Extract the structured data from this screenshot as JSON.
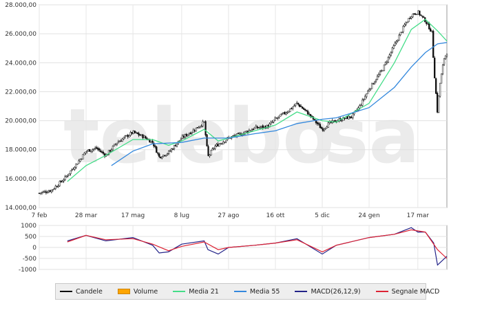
{
  "chart_data": [
    {
      "type": "candlestick",
      "title": "",
      "ylim": [
        14000,
        28000
      ],
      "y_ticks": [
        "28.000,00",
        "26.000,00",
        "24.000,00",
        "22.000,00",
        "20.000,00",
        "18.000,00",
        "16.000,00",
        "14.000,00"
      ],
      "y_tick_values": [
        28000,
        26000,
        24000,
        22000,
        20000,
        18000,
        16000,
        14000
      ],
      "x_ticks": [
        "7 feb",
        "28 mar",
        "17 mag",
        "8 lug",
        "27 ago",
        "16 ott",
        "5 dic",
        "24 gen",
        "17 mar"
      ],
      "x_tick_dates": [
        "2024-02-07",
        "2024-03-28",
        "2024-05-17",
        "2024-07-08",
        "2024-08-27",
        "2024-10-16",
        "2024-12-05",
        "2025-01-24",
        "2025-03-17"
      ],
      "x_range": [
        "2024-02-07",
        "2025-04-17"
      ],
      "grid": true,
      "price_series": {
        "name": "Candele",
        "color": "#000000",
        "points": [
          [
            "2024-02-07",
            15000
          ],
          [
            "2024-02-20",
            15200
          ],
          [
            "2024-03-05",
            16000
          ],
          [
            "2024-03-20",
            17200
          ],
          [
            "2024-03-28",
            17900
          ],
          [
            "2024-04-08",
            18100
          ],
          [
            "2024-04-18",
            17600
          ],
          [
            "2024-04-30",
            18500
          ],
          [
            "2024-05-17",
            19200
          ],
          [
            "2024-05-28",
            18900
          ],
          [
            "2024-06-07",
            18500
          ],
          [
            "2024-06-14",
            17500
          ],
          [
            "2024-06-24",
            17800
          ],
          [
            "2024-07-08",
            18800
          ],
          [
            "2024-07-22",
            19400
          ],
          [
            "2024-08-01",
            19900
          ],
          [
            "2024-08-05",
            17500
          ],
          [
            "2024-08-12",
            18200
          ],
          [
            "2024-08-27",
            18800
          ],
          [
            "2024-09-10",
            19100
          ],
          [
            "2024-09-24",
            19500
          ],
          [
            "2024-10-08",
            19600
          ],
          [
            "2024-10-16",
            20100
          ],
          [
            "2024-10-30",
            20700
          ],
          [
            "2024-11-08",
            21200
          ],
          [
            "2024-11-20",
            20500
          ],
          [
            "2024-12-05",
            19400
          ],
          [
            "2024-12-12",
            19800
          ],
          [
            "2024-12-20",
            20000
          ],
          [
            "2025-01-06",
            20300
          ],
          [
            "2025-01-14",
            21000
          ],
          [
            "2025-01-24",
            22200
          ],
          [
            "2025-02-07",
            23500
          ],
          [
            "2025-02-20",
            25200
          ],
          [
            "2025-03-03",
            26600
          ],
          [
            "2025-03-10",
            27300
          ],
          [
            "2025-03-17",
            27500
          ],
          [
            "2025-03-25",
            26900
          ],
          [
            "2025-04-01",
            26100
          ],
          [
            "2025-04-03",
            23800
          ],
          [
            "2025-04-07",
            20500
          ],
          [
            "2025-04-09",
            22300
          ],
          [
            "2025-04-14",
            24300
          ],
          [
            "2025-04-17",
            24700
          ]
        ]
      },
      "ma21": {
        "name": "Media 21",
        "color": "#44dd88",
        "points": [
          [
            "2024-03-08",
            15800
          ],
          [
            "2024-03-28",
            16900
          ],
          [
            "2024-04-18",
            17600
          ],
          [
            "2024-05-17",
            18700
          ],
          [
            "2024-06-07",
            18700
          ],
          [
            "2024-06-24",
            18300
          ],
          [
            "2024-07-08",
            18600
          ],
          [
            "2024-08-01",
            19400
          ],
          [
            "2024-08-16",
            18600
          ],
          [
            "2024-08-27",
            18800
          ],
          [
            "2024-09-24",
            19300
          ],
          [
            "2024-10-16",
            19700
          ],
          [
            "2024-11-08",
            20600
          ],
          [
            "2024-12-05",
            20000
          ],
          [
            "2024-12-20",
            19900
          ],
          [
            "2025-01-24",
            21200
          ],
          [
            "2025-02-20",
            24000
          ],
          [
            "2025-03-10",
            26300
          ],
          [
            "2025-03-25",
            27000
          ],
          [
            "2025-04-07",
            26200
          ],
          [
            "2025-04-17",
            25500
          ]
        ]
      },
      "ma55": {
        "name": "Media 55",
        "color": "#3388dd",
        "points": [
          [
            "2024-04-24",
            16900
          ],
          [
            "2024-05-17",
            17900
          ],
          [
            "2024-06-07",
            18400
          ],
          [
            "2024-07-08",
            18500
          ],
          [
            "2024-08-01",
            18800
          ],
          [
            "2024-08-27",
            18800
          ],
          [
            "2024-09-24",
            19100
          ],
          [
            "2024-10-16",
            19300
          ],
          [
            "2024-11-08",
            19800
          ],
          [
            "2024-12-05",
            20100
          ],
          [
            "2024-12-20",
            20200
          ],
          [
            "2025-01-24",
            20900
          ],
          [
            "2025-02-20",
            22300
          ],
          [
            "2025-03-10",
            23700
          ],
          [
            "2025-03-25",
            24700
          ],
          [
            "2025-04-07",
            25300
          ],
          [
            "2025-04-17",
            25400
          ]
        ]
      }
    },
    {
      "type": "line",
      "title": "",
      "ylim": [
        -1000,
        1000
      ],
      "y_ticks": [
        "1000",
        "500",
        "0",
        "-500",
        "-1000"
      ],
      "y_tick_values": [
        1000,
        500,
        0,
        -500,
        -1000
      ],
      "series": [
        {
          "name": "MACD(26,12,9)",
          "color": "#222288",
          "points": [
            [
              "2024-03-08",
              300
            ],
            [
              "2024-03-28",
              550
            ],
            [
              "2024-04-18",
              300
            ],
            [
              "2024-05-17",
              450
            ],
            [
              "2024-06-07",
              100
            ],
            [
              "2024-06-14",
              -250
            ],
            [
              "2024-06-24",
              -200
            ],
            [
              "2024-07-08",
              150
            ],
            [
              "2024-08-01",
              300
            ],
            [
              "2024-08-05",
              -100
            ],
            [
              "2024-08-16",
              -300
            ],
            [
              "2024-08-27",
              0
            ],
            [
              "2024-09-24",
              100
            ],
            [
              "2024-10-16",
              200
            ],
            [
              "2024-11-08",
              400
            ],
            [
              "2024-12-05",
              -300
            ],
            [
              "2024-12-20",
              100
            ],
            [
              "2025-01-24",
              450
            ],
            [
              "2025-02-20",
              600
            ],
            [
              "2025-03-10",
              900
            ],
            [
              "2025-03-17",
              700
            ],
            [
              "2025-03-25",
              700
            ],
            [
              "2025-04-03",
              200
            ],
            [
              "2025-04-07",
              -800
            ],
            [
              "2025-04-17",
              -400
            ]
          ]
        },
        {
          "name": "Segnale MACD",
          "color": "#dd2233",
          "points": [
            [
              "2024-03-08",
              250
            ],
            [
              "2024-03-28",
              550
            ],
            [
              "2024-04-18",
              350
            ],
            [
              "2024-05-17",
              400
            ],
            [
              "2024-06-07",
              150
            ],
            [
              "2024-06-24",
              -150
            ],
            [
              "2024-07-08",
              50
            ],
            [
              "2024-08-01",
              250
            ],
            [
              "2024-08-16",
              -100
            ],
            [
              "2024-08-27",
              0
            ],
            [
              "2024-09-24",
              100
            ],
            [
              "2024-10-16",
              200
            ],
            [
              "2024-11-08",
              350
            ],
            [
              "2024-12-05",
              -200
            ],
            [
              "2024-12-20",
              100
            ],
            [
              "2025-01-24",
              450
            ],
            [
              "2025-02-20",
              600
            ],
            [
              "2025-03-10",
              800
            ],
            [
              "2025-03-25",
              700
            ],
            [
              "2025-04-07",
              -100
            ],
            [
              "2025-04-17",
              -500
            ]
          ]
        }
      ]
    }
  ],
  "watermark": "telebo",
  "watermark_suffix": "sa",
  "legend": [
    {
      "label": "Candele",
      "color": "#000000",
      "kind": "line"
    },
    {
      "label": "Volume",
      "color": "#ffa500",
      "kind": "box"
    },
    {
      "label": "Media 21",
      "color": "#44dd88",
      "kind": "line"
    },
    {
      "label": "Media 55",
      "color": "#3388dd",
      "kind": "line"
    },
    {
      "label": "MACD(26,12,9)",
      "color": "#222288",
      "kind": "line"
    },
    {
      "label": "Segnale MACD",
      "color": "#dd2233",
      "kind": "line"
    }
  ]
}
